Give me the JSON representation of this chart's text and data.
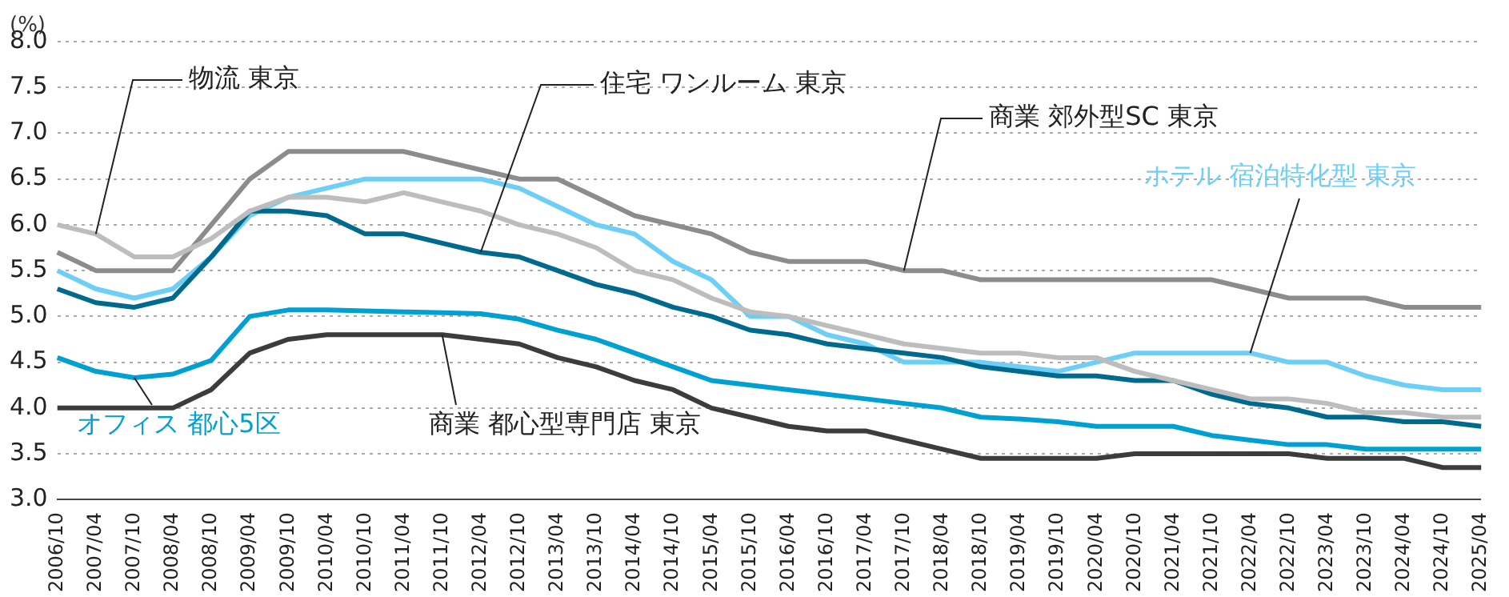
{
  "chart_data": {
    "type": "line",
    "ylabel": "(%)",
    "categories": [
      "2006/10",
      "2007/04",
      "2007/10",
      "2008/04",
      "2008/10",
      "2009/04",
      "2009/10",
      "2010/04",
      "2010/10",
      "2011/04",
      "2011/10",
      "2012/04",
      "2012/10",
      "2013/04",
      "2013/10",
      "2014/04",
      "2014/10",
      "2015/04",
      "2015/10",
      "2016/04",
      "2016/10",
      "2017/04",
      "2017/10",
      "2018/04",
      "2018/10",
      "2019/04",
      "2019/10",
      "2020/04",
      "2020/10",
      "2021/04",
      "2021/10",
      "2022/04",
      "2022/10",
      "2023/04",
      "2023/10",
      "2024/04",
      "2024/10",
      "2025/04"
    ],
    "series": [
      {
        "name": "物流 東京",
        "color": "#bdbdbd",
        "values": [
          6.0,
          5.9,
          5.65,
          5.65,
          5.85,
          6.15,
          6.3,
          6.3,
          6.25,
          6.35,
          6.25,
          6.15,
          6.0,
          5.9,
          5.75,
          5.5,
          5.4,
          5.2,
          5.05,
          5.0,
          4.9,
          4.8,
          4.7,
          4.65,
          4.6,
          4.6,
          4.55,
          4.55,
          4.4,
          4.3,
          4.2,
          4.1,
          4.1,
          4.05,
          3.95,
          3.95,
          3.9,
          3.9
        ]
      },
      {
        "name": "住宅 ワンルーム 東京",
        "color": "#006a8e",
        "values": [
          5.3,
          5.15,
          5.1,
          5.2,
          5.65,
          6.15,
          6.15,
          6.1,
          5.9,
          5.9,
          5.8,
          5.7,
          5.65,
          5.5,
          5.35,
          5.25,
          5.1,
          5.0,
          4.85,
          4.8,
          4.7,
          4.65,
          4.6,
          4.55,
          4.45,
          4.4,
          4.35,
          4.35,
          4.3,
          4.3,
          4.15,
          4.05,
          4.0,
          3.9,
          3.9,
          3.85,
          3.85,
          3.8
        ]
      },
      {
        "name": "商業 郊外型SC 東京",
        "color": "#8c8c8c",
        "values": [
          5.7,
          5.5,
          5.5,
          5.5,
          6.0,
          6.5,
          6.8,
          6.8,
          6.8,
          6.8,
          6.7,
          6.6,
          6.5,
          6.5,
          6.3,
          6.1,
          6.0,
          5.9,
          5.7,
          5.6,
          5.6,
          5.6,
          5.5,
          5.5,
          5.4,
          5.4,
          5.4,
          5.4,
          5.4,
          5.4,
          5.4,
          5.3,
          5.2,
          5.2,
          5.2,
          5.1,
          5.1,
          5.1
        ]
      },
      {
        "name": "ホテル 宿泊特化型 東京",
        "color": "#6dcff6",
        "values": [
          5.5,
          5.3,
          5.2,
          5.3,
          5.65,
          6.1,
          6.3,
          6.4,
          6.5,
          6.5,
          6.5,
          6.5,
          6.4,
          6.2,
          6.0,
          5.9,
          5.6,
          5.4,
          5.0,
          5.0,
          4.8,
          4.7,
          4.5,
          4.5,
          4.5,
          4.45,
          4.4,
          4.5,
          4.6,
          4.6,
          4.6,
          4.6,
          4.5,
          4.5,
          4.35,
          4.25,
          4.2,
          4.2
        ]
      },
      {
        "name": "オフィス 都心5区",
        "color": "#00a0d2",
        "values": [
          4.55,
          4.4,
          4.33,
          4.37,
          4.52,
          5.0,
          5.07,
          5.07,
          5.06,
          5.05,
          5.04,
          5.03,
          4.97,
          4.85,
          4.75,
          4.6,
          4.45,
          4.3,
          4.25,
          4.2,
          4.15,
          4.1,
          4.05,
          4.0,
          3.9,
          3.88,
          3.85,
          3.8,
          3.8,
          3.8,
          3.7,
          3.65,
          3.6,
          3.6,
          3.55,
          3.55,
          3.55,
          3.55
        ]
      },
      {
        "name": "商業 都心型専門店 東京",
        "color": "#3c3c3c",
        "values": [
          4.0,
          4.0,
          4.0,
          4.0,
          4.2,
          4.6,
          4.75,
          4.8,
          4.8,
          4.8,
          4.8,
          4.75,
          4.7,
          4.55,
          4.45,
          4.3,
          4.2,
          4.0,
          3.9,
          3.8,
          3.75,
          3.75,
          3.65,
          3.55,
          3.45,
          3.45,
          3.45,
          3.45,
          3.5,
          3.5,
          3.5,
          3.5,
          3.5,
          3.45,
          3.45,
          3.45,
          3.35,
          3.35
        ]
      }
    ],
    "ylim": [
      3.0,
      8.0
    ],
    "yticks": [
      {
        "value": 3,
        "label": "3.0"
      },
      3.5,
      {
        "value": 4,
        "label": "4.0"
      },
      4.5,
      {
        "value": 5,
        "label": "5.0"
      },
      5.5,
      {
        "value": 6,
        "label": "6.0"
      },
      6.5,
      {
        "value": 7,
        "label": "7.0"
      },
      7.5,
      {
        "value": 8,
        "label": "8.0"
      }
    ],
    "grid": "y",
    "legend": false,
    "marker": "none",
    "line_style": "solid"
  }
}
